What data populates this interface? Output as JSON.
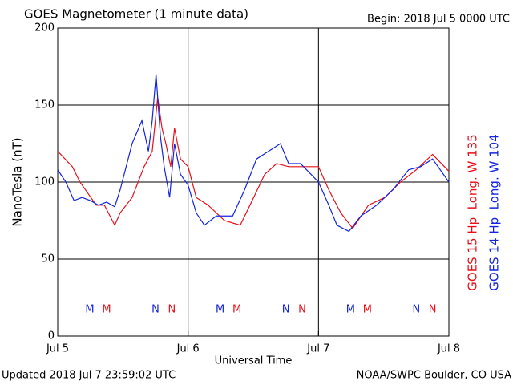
{
  "chart_data": {
    "type": "line",
    "title": "GOES Magnetometer (1 minute data)",
    "subtitle": "Begin:  2018 Jul 5 0000 UTC",
    "ylabel": "NanoTesla (nT)",
    "xlabel": "Universal Time",
    "footer_left": "Updated 2018 Jul  7 23:59:02 UTC",
    "footer_right": "NOAA/SWPC Boulder, CO USA",
    "xlim": [
      0,
      72
    ],
    "xticks": [
      {
        "value": 0,
        "label": "Jul 5"
      },
      {
        "value": 24,
        "label": "Jul 6"
      },
      {
        "value": 48,
        "label": "Jul 7"
      },
      {
        "value": 72,
        "label": "Jul 8"
      }
    ],
    "ylim": [
      0,
      200
    ],
    "yticks": [
      0,
      50,
      100,
      150,
      200
    ],
    "grid": true,
    "series": [
      {
        "name": "GOES 15 Hp  Long. W 135",
        "color": "#e8101a",
        "x": [
          0,
          2.7,
          4.1,
          7.1,
          8.6,
          10.5,
          11.5,
          13.7,
          15.9,
          17.4,
          18.4,
          19.2,
          19.9,
          20.8,
          21.5,
          22.6,
          24,
          25.5,
          27.7,
          30.7,
          33.6,
          35.8,
          38.1,
          40.3,
          42.5,
          45.4,
          48,
          49.9,
          52.1,
          54.3,
          57.2,
          60.2,
          63.1,
          66,
          69,
          72
        ],
        "values": [
          120,
          110,
          100,
          85,
          85,
          72,
          80,
          90,
          110,
          120,
          155,
          135,
          125,
          110,
          135,
          115,
          110,
          90,
          85,
          75,
          72,
          88,
          105,
          112,
          110,
          110,
          110,
          95,
          80,
          70,
          85,
          90,
          100,
          108,
          118,
          107
        ]
      },
      {
        "name": "GOES 14 Hp  Long. W 104",
        "color": "#1424e0",
        "x": [
          0,
          1.5,
          3,
          4.5,
          6,
          7.5,
          9,
          10.5,
          11.5,
          13.7,
          15.5,
          16.7,
          17.4,
          18.1,
          18.9,
          19.6,
          20.6,
          21.5,
          22.6,
          24,
          25.5,
          27,
          29.2,
          32.2,
          34.4,
          36.6,
          38.8,
          41,
          42.5,
          44.7,
          48,
          49.9,
          51.4,
          53.6,
          55.8,
          58.7,
          61.7,
          64.6,
          66.8,
          69,
          72
        ],
        "values": [
          108,
          100,
          88,
          90,
          88,
          85,
          87,
          84,
          95,
          125,
          140,
          120,
          140,
          170,
          130,
          110,
          90,
          125,
          105,
          98,
          80,
          72,
          78,
          78,
          95,
          115,
          120,
          125,
          112,
          112,
          100,
          85,
          72,
          68,
          78,
          85,
          95,
          108,
          110,
          115,
          100
        ]
      }
    ],
    "markers": [
      {
        "text": "M",
        "x": 5.9,
        "series": 1
      },
      {
        "text": "M",
        "x": 9,
        "series": 0
      },
      {
        "text": "N",
        "x": 18,
        "series": 1
      },
      {
        "text": "N",
        "x": 21,
        "series": 0
      },
      {
        "text": "M",
        "x": 29.9,
        "series": 1
      },
      {
        "text": "M",
        "x": 33,
        "series": 0
      },
      {
        "text": "N",
        "x": 42,
        "series": 1
      },
      {
        "text": "N",
        "x": 45,
        "series": 0
      },
      {
        "text": "M",
        "x": 53.9,
        "series": 1
      },
      {
        "text": "M",
        "x": 57,
        "series": 0
      },
      {
        "text": "N",
        "x": 66,
        "series": 1
      },
      {
        "text": "N",
        "x": 69,
        "series": 0
      }
    ]
  }
}
